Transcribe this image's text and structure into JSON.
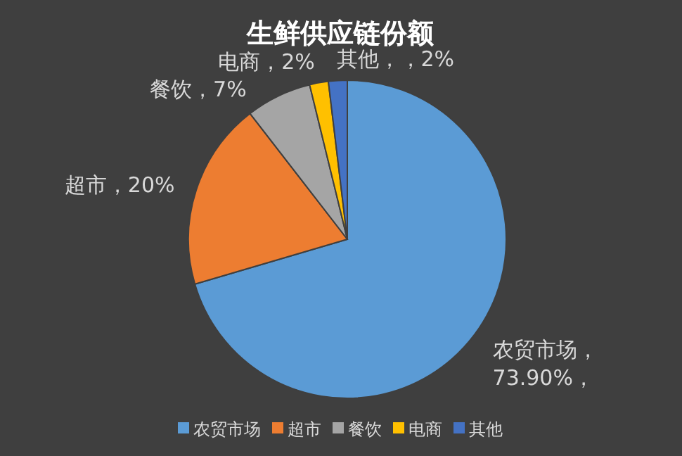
{
  "chart_data": {
    "type": "pie",
    "title": "生鲜供应链份额",
    "categories": [
      "农贸市场",
      "超市",
      "餐饮",
      "电商",
      "其他"
    ],
    "values": [
      73.9,
      20,
      7,
      2,
      2
    ],
    "colors": [
      "#5b9bd5",
      "#ed7d31",
      "#a5a5a5",
      "#ffc000",
      "#4472c4"
    ],
    "value_labels": [
      "农贸市场，73.90%，",
      "超市，20%",
      "餐饮，7%",
      "电商，2%",
      "其他，，2%"
    ],
    "legend": "bottom"
  }
}
